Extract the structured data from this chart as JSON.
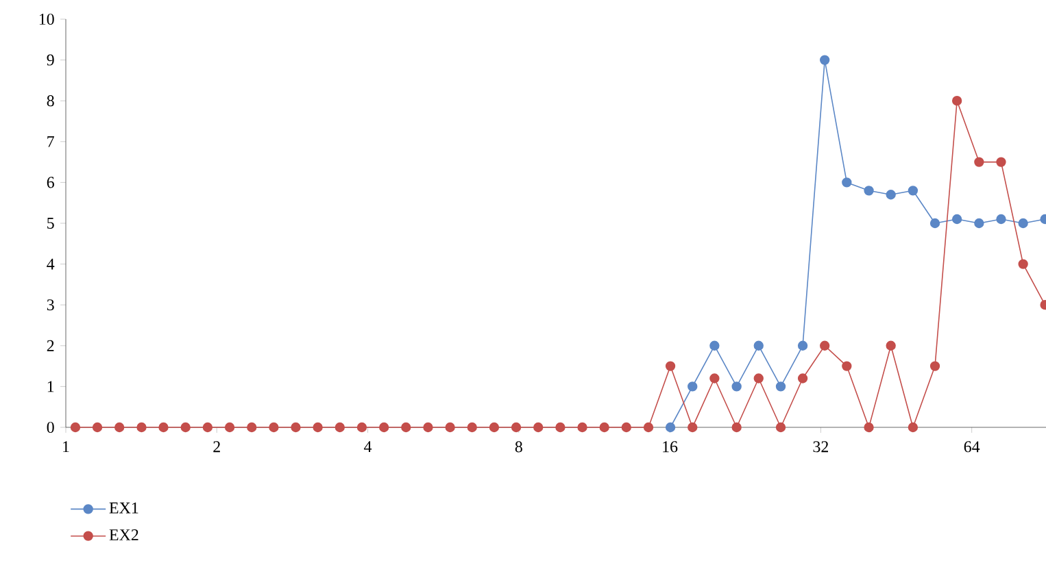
{
  "chart_data": {
    "type": "line",
    "x": [
      1.045,
      1.156,
      1.279,
      1.416,
      1.566,
      1.733,
      1.918,
      2.122,
      2.348,
      2.598,
      2.874,
      3.18,
      3.519,
      3.894,
      4.309,
      4.767,
      5.275,
      5.837,
      6.458,
      7.146,
      7.907,
      8.748,
      9.68,
      10.71,
      11.85,
      13.11,
      14.51,
      16.05,
      17.76,
      19.65,
      21.75,
      24.06,
      26.63,
      29.46,
      32.59,
      36.06,
      39.91,
      44.15,
      48.86,
      54.06,
      59.81,
      66.19,
      73.23,
      81.03,
      89.6
    ],
    "series": [
      {
        "name": "EX1",
        "color": "#5b87c6",
        "values": [
          null,
          null,
          null,
          null,
          null,
          null,
          null,
          null,
          null,
          null,
          null,
          null,
          null,
          null,
          null,
          null,
          null,
          null,
          null,
          null,
          null,
          null,
          null,
          null,
          null,
          null,
          null,
          0,
          1,
          2,
          1,
          2,
          1,
          2,
          9,
          6.0,
          5.8,
          5.7,
          5.8,
          5.0,
          5.1,
          5.0,
          5.1,
          5.0,
          5.1
        ]
      },
      {
        "name": "EX2",
        "color": "#c44e4b",
        "values": [
          0,
          0,
          0,
          0,
          0,
          0,
          0,
          0,
          0,
          0,
          0,
          0,
          0,
          0,
          0,
          0,
          0,
          0,
          0,
          0,
          0,
          0,
          0,
          0,
          0,
          0,
          0,
          1.5,
          0,
          1.2,
          0,
          1.2,
          0,
          1.2,
          2,
          1.5,
          0,
          2,
          0,
          1.5,
          8,
          6.5,
          6.5,
          4,
          3
        ]
      }
    ],
    "log": "x",
    "xlim": [
      1,
      90
    ],
    "xticks": [
      1,
      2,
      4,
      8,
      16,
      32,
      64
    ],
    "ylim": [
      0,
      10
    ],
    "yticks": [
      0,
      1,
      2,
      3,
      4,
      5,
      6,
      7,
      8,
      9,
      10
    ],
    "grid": false,
    "legend": "bottom left",
    "marker": "circle",
    "line_style": "solid"
  }
}
